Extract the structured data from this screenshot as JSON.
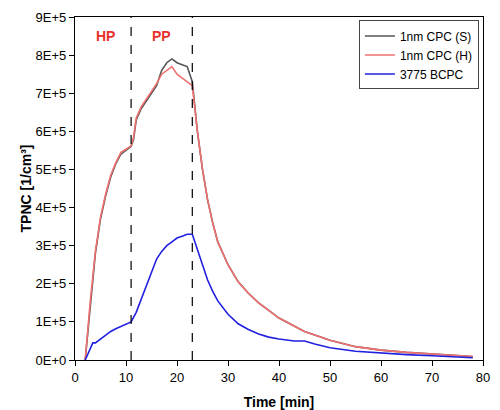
{
  "chart_data": {
    "type": "line",
    "x_label": "Time [min]",
    "y_label": "TPNC [1/cm³]",
    "xlim": [
      0,
      80
    ],
    "xticks": [
      0,
      10,
      20,
      30,
      40,
      50,
      60,
      70,
      80
    ],
    "ylim": [
      0,
      900000
    ],
    "yticks": [
      {
        "value": 0,
        "label": "0E+0"
      },
      {
        "value": 100000,
        "label": "1E+5"
      },
      {
        "value": 200000,
        "label": "2E+5"
      },
      {
        "value": 300000,
        "label": "3E+5"
      },
      {
        "value": 400000,
        "label": "4E+5"
      },
      {
        "value": 500000,
        "label": "5E+5"
      },
      {
        "value": 600000,
        "label": "6E+5"
      },
      {
        "value": 700000,
        "label": "7E+5"
      },
      {
        "value": 800000,
        "label": "8E+5"
      },
      {
        "value": 900000,
        "label": "9E+5"
      }
    ],
    "grid": false,
    "legend": "top-right",
    "vlines": [
      11,
      23
    ],
    "vline_style": "dashed",
    "annotations": [
      {
        "text": "HP",
        "x": 6,
        "y": 850000,
        "color": "#e8302a"
      },
      {
        "text": "PP",
        "x": 17,
        "y": 850000,
        "color": "#e8302a"
      }
    ],
    "series": [
      {
        "name": "1nm CPC (S)",
        "color": "#555555",
        "x": [
          2,
          3,
          4,
          5,
          6,
          7,
          8,
          9,
          10,
          11,
          11.5,
          12,
          13,
          14,
          15,
          16,
          17,
          18,
          19,
          20,
          21,
          22,
          23,
          24,
          25,
          26,
          27,
          28,
          30,
          32,
          34,
          36,
          38,
          40,
          45,
          50,
          55,
          60,
          65,
          70,
          75,
          78
        ],
        "values": [
          0,
          150000,
          280000,
          370000,
          430000,
          480000,
          515000,
          540000,
          550000,
          560000,
          580000,
          630000,
          660000,
          680000,
          700000,
          720000,
          760000,
          780000,
          790000,
          780000,
          775000,
          770000,
          730000,
          600000,
          500000,
          420000,
          360000,
          310000,
          250000,
          205000,
          175000,
          150000,
          130000,
          110000,
          75000,
          52000,
          35000,
          26000,
          20000,
          15000,
          11000,
          9000
        ]
      },
      {
        "name": "1nm CPC (H)",
        "color": "#f07070",
        "x": [
          2,
          3,
          4,
          5,
          6,
          7,
          8,
          9,
          10,
          11,
          11.5,
          12,
          13,
          14,
          15,
          16,
          17,
          18,
          19,
          20,
          21,
          22,
          23,
          24,
          25,
          26,
          27,
          28,
          30,
          32,
          34,
          36,
          38,
          40,
          45,
          50,
          55,
          60,
          65,
          70,
          75,
          78
        ],
        "values": [
          0,
          155000,
          285000,
          375000,
          435000,
          485000,
          518000,
          545000,
          553000,
          562000,
          585000,
          635000,
          665000,
          685000,
          705000,
          725000,
          750000,
          760000,
          770000,
          750000,
          740000,
          730000,
          720000,
          600000,
          500000,
          420000,
          360000,
          310000,
          250000,
          205000,
          175000,
          150000,
          130000,
          110000,
          75000,
          52000,
          35000,
          26000,
          20000,
          15000,
          11000,
          9000
        ]
      },
      {
        "name": "3775 BCPC",
        "color": "#2020e0",
        "x": [
          2,
          3,
          3.5,
          4,
          5,
          6,
          7,
          8,
          9,
          10,
          11,
          12,
          13,
          14,
          15,
          16,
          17,
          18,
          19,
          20,
          21,
          22,
          23,
          24,
          25,
          26,
          27,
          28,
          30,
          32,
          34,
          36,
          38,
          40,
          43,
          45,
          47,
          50,
          55,
          60,
          65,
          70,
          75,
          78
        ],
        "values": [
          0,
          30000,
          45000,
          45000,
          55000,
          65000,
          75000,
          82000,
          88000,
          95000,
          100000,
          125000,
          160000,
          200000,
          235000,
          265000,
          285000,
          300000,
          310000,
          320000,
          325000,
          330000,
          330000,
          290000,
          250000,
          210000,
          180000,
          155000,
          120000,
          95000,
          80000,
          68000,
          60000,
          55000,
          50000,
          50000,
          42000,
          32000,
          23000,
          18000,
          14000,
          11000,
          8000,
          6000
        ]
      }
    ]
  }
}
